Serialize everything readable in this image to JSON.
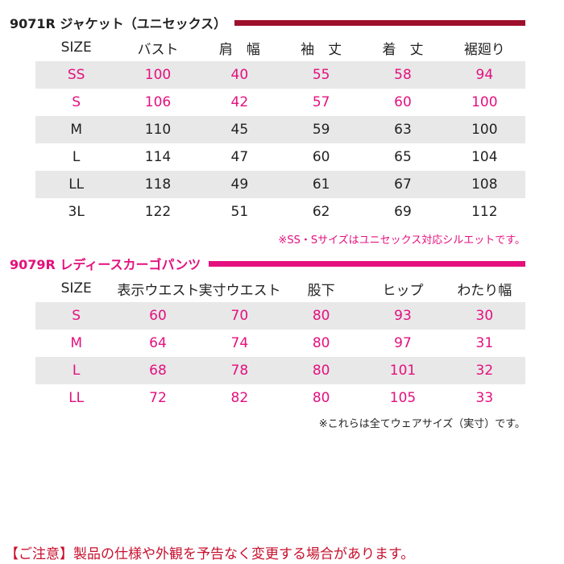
{
  "colors": {
    "jacket_bar": "#9e0f2b",
    "pants_bar": "#e4107e",
    "pink_text": "#e4107e",
    "row_shade": "#e8e8e8",
    "footer_text": "#c8102e"
  },
  "jacket": {
    "title": "9071R ジャケット（ユニセックス）",
    "headers": [
      "SIZE",
      "バスト",
      "肩　幅",
      "袖　丈",
      "着　丈",
      "裾廻り"
    ],
    "rows": [
      [
        "SS",
        "100",
        "40",
        "55",
        "58",
        "94"
      ],
      [
        "S",
        "106",
        "42",
        "57",
        "60",
        "100"
      ],
      [
        "M",
        "110",
        "45",
        "59",
        "63",
        "100"
      ],
      [
        "L",
        "114",
        "47",
        "60",
        "65",
        "104"
      ],
      [
        "LL",
        "118",
        "49",
        "61",
        "67",
        "108"
      ],
      [
        "3L",
        "122",
        "51",
        "62",
        "69",
        "112"
      ]
    ],
    "note": "※SS・Sサイズはユニセックス対応シルエットです。"
  },
  "pants": {
    "title": "9079R レディースカーゴパンツ",
    "headers": [
      "SIZE",
      "表示ウエスト",
      "実寸ウエスト",
      "股下",
      "ヒップ",
      "わたり幅"
    ],
    "rows": [
      [
        "S",
        "60",
        "70",
        "80",
        "93",
        "30"
      ],
      [
        "M",
        "64",
        "74",
        "80",
        "97",
        "31"
      ],
      [
        "L",
        "68",
        "78",
        "80",
        "101",
        "32"
      ],
      [
        "LL",
        "72",
        "82",
        "80",
        "105",
        "33"
      ]
    ],
    "note": "※これらは全てウェアサイズ（実寸）です。"
  },
  "footer": "【ご注意】製品の仕様や外観を予告なく変更する場合があります。"
}
